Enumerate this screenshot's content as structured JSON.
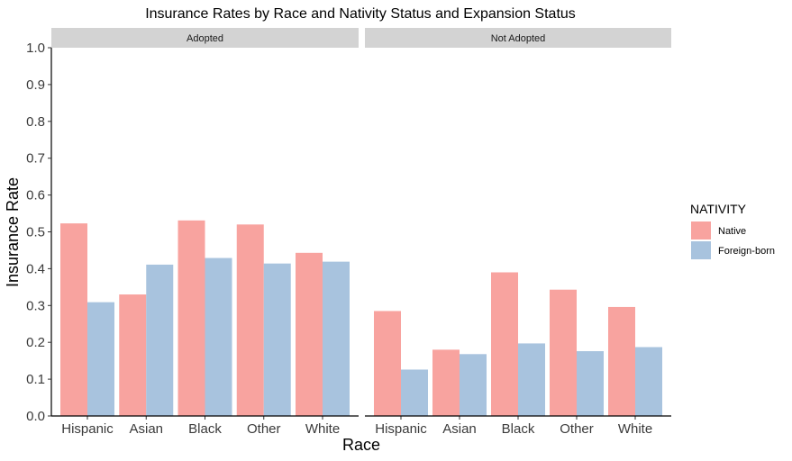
{
  "chart_data": {
    "type": "bar",
    "title": "Insurance Rates by Race and Nativity Status and Expansion Status",
    "xlabel": "Race",
    "ylabel": "Insurance Rate",
    "ylim": [
      0,
      1
    ],
    "yticks": [
      "0.0",
      "0.1",
      "0.2",
      "0.3",
      "0.4",
      "0.5",
      "0.6",
      "0.7",
      "0.8",
      "0.9",
      "1.0"
    ],
    "categories": [
      "Hispanic",
      "Asian",
      "Black",
      "Other",
      "White"
    ],
    "grid": false,
    "legend": {
      "title": "NATIVITY",
      "placement": "right",
      "entries": [
        "Native",
        "Foreign-born"
      ]
    },
    "colors": {
      "Native": "#f8a39f",
      "Foreign-born": "#a8c3de"
    },
    "facets": [
      {
        "label": "Adopted",
        "series": [
          {
            "name": "Native",
            "values": [
              0.523,
              0.33,
              0.531,
              0.52,
              0.443
            ]
          },
          {
            "name": "Foreign-born",
            "values": [
              0.309,
              0.411,
              0.429,
              0.414,
              0.419
            ]
          }
        ]
      },
      {
        "label": "Not Adopted",
        "series": [
          {
            "name": "Native",
            "values": [
              0.285,
              0.18,
              0.39,
              0.343,
              0.296
            ]
          },
          {
            "name": "Foreign-born",
            "values": [
              0.126,
              0.168,
              0.197,
              0.176,
              0.187
            ]
          }
        ]
      }
    ]
  }
}
